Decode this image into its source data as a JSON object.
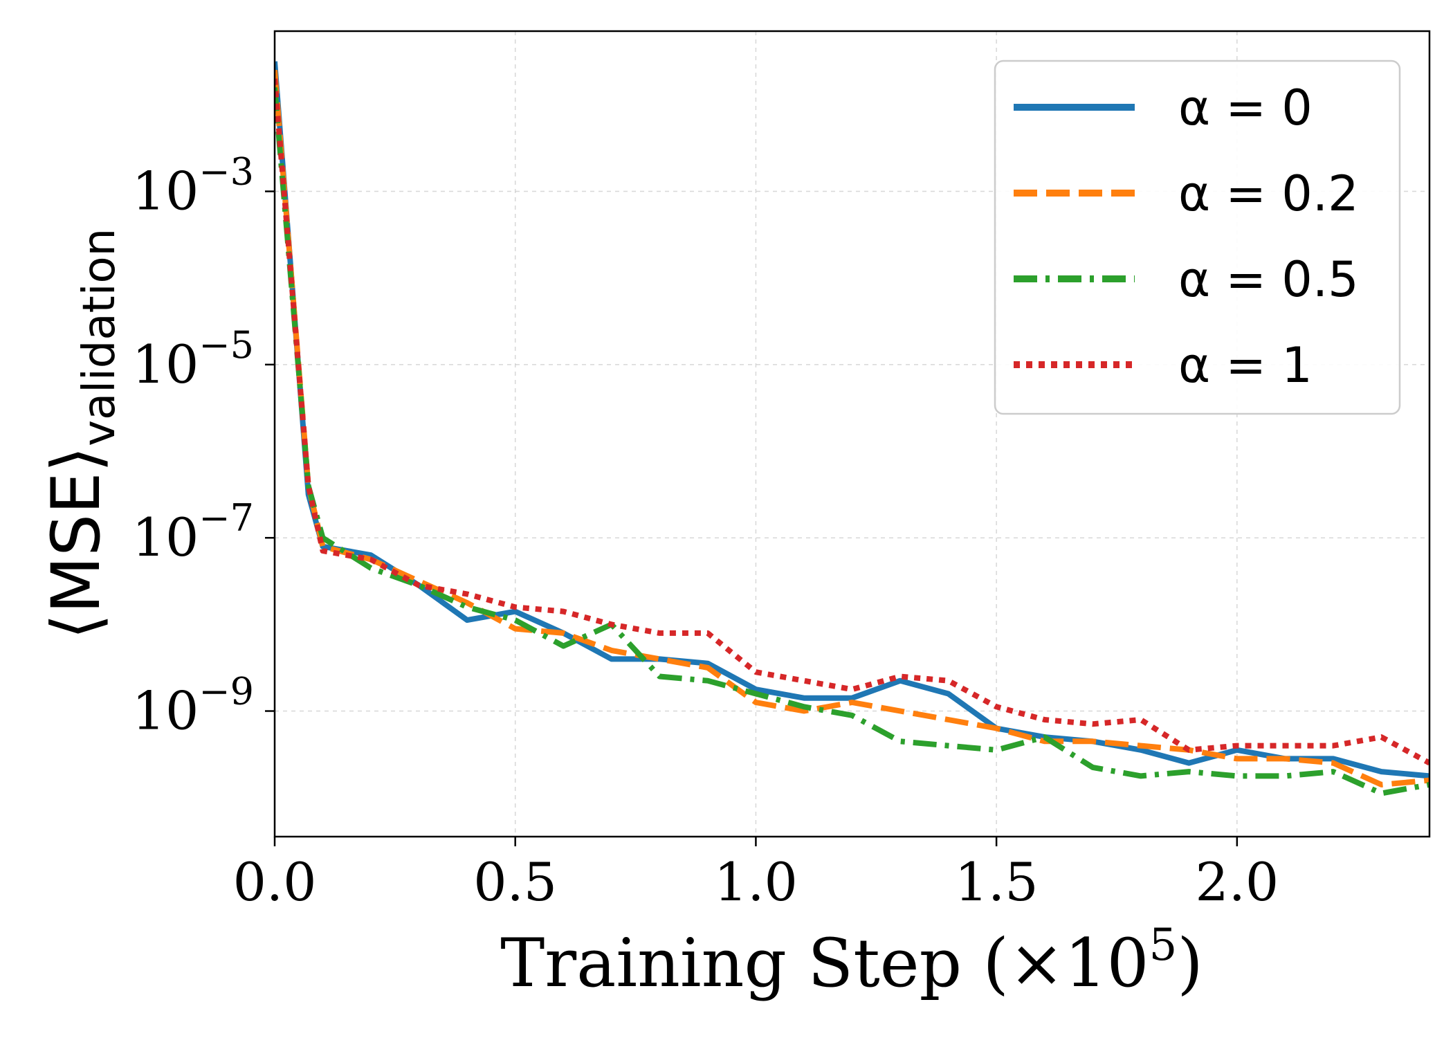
{
  "chart_data": {
    "type": "line",
    "title": "",
    "xlabel": "Training Step (×10⁵)",
    "xlabel_parts": {
      "main": "Training Step (×10",
      "exp": "5",
      "close": ")"
    },
    "ylabel": "⟨MSE⟩validation",
    "ylabel_parts": {
      "main": "⟨MSE⟩",
      "sub": "validation"
    },
    "yscale": "log",
    "xlim": [
      0,
      2.4
    ],
    "ylim_log10": [
      -10.45,
      -1.15
    ],
    "grid": true,
    "legend_position": "top-right",
    "x_ticks": [
      {
        "value": 0.0,
        "label": "0.0"
      },
      {
        "value": 0.5,
        "label": "0.5"
      },
      {
        "value": 1.0,
        "label": "1.0"
      },
      {
        "value": 1.5,
        "label": "1.5"
      },
      {
        "value": 2.0,
        "label": "2.0"
      }
    ],
    "y_ticks": [
      {
        "log10": -3,
        "base": "10",
        "exp": "−3"
      },
      {
        "log10": -5,
        "base": "10",
        "exp": "−5"
      },
      {
        "log10": -7,
        "base": "10",
        "exp": "−7"
      },
      {
        "log10": -9,
        "base": "10",
        "exp": "−9"
      }
    ],
    "x": [
      0.0,
      0.07,
      0.1,
      0.2,
      0.3,
      0.4,
      0.5,
      0.6,
      0.7,
      0.8,
      0.9,
      1.0,
      1.1,
      1.2,
      1.3,
      1.4,
      1.5,
      1.6,
      1.7,
      1.8,
      1.9,
      2.0,
      2.1,
      2.2,
      2.3,
      2.4
    ],
    "series": [
      {
        "name": "α = 0",
        "legend_label": "α = 0",
        "color": "#1f77b4",
        "dash": "solid",
        "log10_values": [
          -1.5,
          -6.5,
          -7.1,
          -7.2,
          -7.55,
          -7.95,
          -7.85,
          -8.1,
          -8.4,
          -8.4,
          -8.45,
          -8.75,
          -8.85,
          -8.85,
          -8.65,
          -8.8,
          -9.2,
          -9.3,
          -9.35,
          -9.45,
          -9.6,
          -9.45,
          -9.55,
          -9.55,
          -9.7,
          -9.75
        ]
      },
      {
        "name": "α = 0.2",
        "legend_label": "α = 0.2",
        "color": "#ff7f0e",
        "dash": "dashed",
        "log10_values": [
          -1.6,
          -6.4,
          -7.1,
          -7.25,
          -7.5,
          -7.75,
          -8.05,
          -8.1,
          -8.3,
          -8.4,
          -8.5,
          -8.9,
          -9.0,
          -8.9,
          -9.0,
          -9.1,
          -9.2,
          -9.35,
          -9.35,
          -9.4,
          -9.45,
          -9.55,
          -9.55,
          -9.6,
          -9.85,
          -9.8
        ]
      },
      {
        "name": "α = 0.5",
        "legend_label": "α = 0.5",
        "color": "#2ca02c",
        "dash": "dashdot",
        "log10_values": [
          -1.8,
          -6.4,
          -7.0,
          -7.35,
          -7.55,
          -7.8,
          -7.95,
          -8.25,
          -8.0,
          -8.6,
          -8.65,
          -8.8,
          -8.95,
          -9.05,
          -9.35,
          -9.4,
          -9.45,
          -9.3,
          -9.65,
          -9.75,
          -9.7,
          -9.75,
          -9.75,
          -9.7,
          -9.95,
          -9.85
        ]
      },
      {
        "name": "α = 1",
        "legend_label": "α = 1",
        "color": "#d62728",
        "dash": "dotted",
        "log10_values": [
          -1.7,
          -6.4,
          -7.15,
          -7.25,
          -7.55,
          -7.65,
          -7.8,
          -7.85,
          -8.0,
          -8.1,
          -8.1,
          -8.55,
          -8.65,
          -8.75,
          -8.6,
          -8.65,
          -8.95,
          -9.1,
          -9.15,
          -9.1,
          -9.45,
          -9.4,
          -9.4,
          -9.4,
          -9.3,
          -9.6
        ]
      }
    ]
  }
}
